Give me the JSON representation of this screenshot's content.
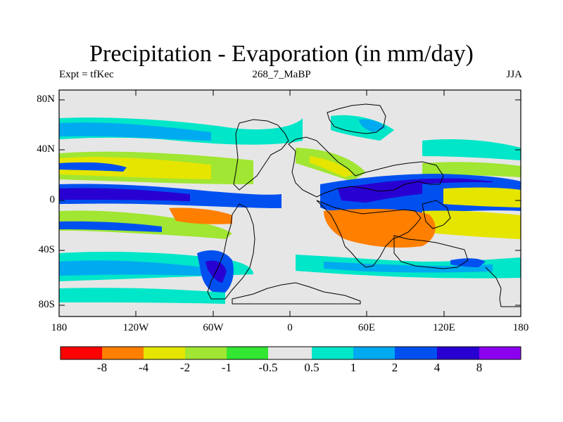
{
  "title": "Precipitation - Evaporation (in mm/day)",
  "subtitle_left": "Expt = tfKec",
  "subtitle_center": "268_7_MaBP",
  "subtitle_right": "JJA",
  "lat_labels": [
    "80N",
    "40N",
    "0",
    "40S",
    "80S"
  ],
  "lon_labels": [
    "180",
    "120W",
    "60W",
    "0",
    "60E",
    "120E",
    "180"
  ],
  "colorbar": {
    "colors": [
      "#ff0000",
      "#ff7f00",
      "#e5e500",
      "#a0e632",
      "#32e632",
      "#e6e6e6",
      "#00e6c8",
      "#00aaf0",
      "#0050f0",
      "#2800d2",
      "#8c00f0"
    ],
    "labels": [
      "-8",
      "-4",
      "-2",
      "-1",
      "-0.5",
      "0.5",
      "1",
      "2",
      "4",
      "8"
    ]
  }
}
